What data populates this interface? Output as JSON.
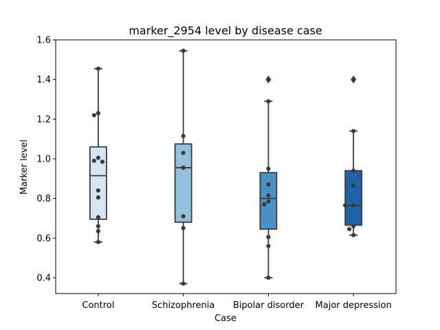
{
  "chart_data": {
    "type": "box",
    "title": "marker_2954 level by disease case",
    "xlabel": "Case",
    "ylabel": "Marker level",
    "ylim": [
      0.32,
      1.6
    ],
    "yticks": [
      0.4,
      0.6,
      0.8,
      1.0,
      1.2,
      1.4,
      1.6
    ],
    "ytick_labels": [
      "0.4",
      "0.6",
      "0.8",
      "1.0",
      "1.2",
      "1.4",
      "1.6"
    ],
    "grid": false,
    "legend": "none",
    "categories": [
      "Control",
      "Schizophrenia",
      "Bipolar disorder",
      "Major depression"
    ],
    "colors": [
      "#d6e5f4",
      "#94c1df",
      "#4a91c6",
      "#1e64aa"
    ],
    "boxes": [
      {
        "q1": 0.695,
        "median": 0.915,
        "q3": 1.06,
        "whisker_low": 0.58,
        "whisker_high": 1.455,
        "outliers": []
      },
      {
        "q1": 0.68,
        "median": 0.955,
        "q3": 1.075,
        "whisker_low": 0.37,
        "whisker_high": 1.545,
        "outliers": []
      },
      {
        "q1": 0.645,
        "median": 0.8,
        "q3": 0.93,
        "whisker_low": 0.4,
        "whisker_high": 1.29,
        "outliers": [
          1.4
        ]
      },
      {
        "q1": 0.665,
        "median": 0.765,
        "q3": 0.94,
        "whisker_low": 0.615,
        "whisker_high": 1.14,
        "outliers": [
          1.4
        ]
      }
    ],
    "points": [
      [
        1.455,
        1.23,
        1.22,
        1.005,
        0.99,
        0.985,
        0.84,
        0.805,
        0.705,
        0.66,
        0.635,
        0.58
      ],
      [
        1.545,
        1.115,
        1.03,
        0.955,
        0.71,
        0.65,
        0.37
      ],
      [
        1.4,
        1.29,
        0.95,
        0.87,
        0.815,
        0.785,
        0.77,
        0.605,
        0.56,
        0.4
      ],
      [
        1.4,
        1.14,
        0.94,
        0.865,
        0.765,
        0.765,
        0.66,
        0.645,
        0.615
      ]
    ]
  }
}
